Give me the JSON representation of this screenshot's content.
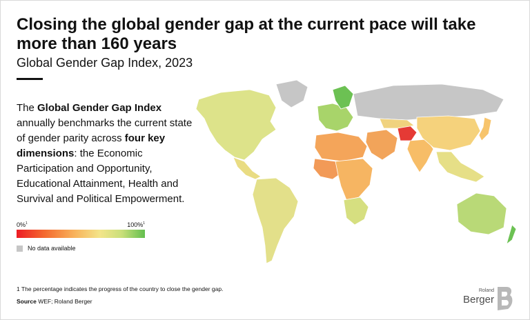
{
  "title": "Closing the global gender gap at the current pace will take more than 160 years",
  "subtitle": "Global Gender Gap Index, 2023",
  "description": {
    "part1": "The ",
    "bold1": "Global Gender Gap Index",
    "part2": " annually benchmarks the current state of gender parity across ",
    "bold2": "four key dimensions",
    "part3": ": the Economic Participation and Opportunity, Educational Attainment, Health and Survival and Political Empowerment."
  },
  "legend": {
    "min_label": "0%",
    "max_label": "100%",
    "footnote_marker": "1",
    "no_data_label": "No data available",
    "scale_colors": [
      "#ed1c24",
      "#f46a2f",
      "#f8b25b",
      "#f3e58a",
      "#c9df7a",
      "#63bf4f"
    ],
    "no_data_color": "#c6c6c6"
  },
  "footnote": "1 The percentage indicates the progress of the country to close the gender gap.",
  "source": {
    "label": "Source",
    "text": " WEF; Roland Berger"
  },
  "logo": {
    "top": "Roland",
    "main": "Berger"
  },
  "map_regions": [
    {
      "name": "north-america",
      "color": "#dde38a"
    },
    {
      "name": "greenland",
      "color": "#c6c6c6"
    },
    {
      "name": "central-america",
      "color": "#e9dc83"
    },
    {
      "name": "south-america",
      "color": "#e3e08a"
    },
    {
      "name": "europe",
      "color": "#a8d46a"
    },
    {
      "name": "scandinavia",
      "color": "#6cc153"
    },
    {
      "name": "russia",
      "color": "#c6c6c6"
    },
    {
      "name": "africa-north",
      "color": "#f4a55a"
    },
    {
      "name": "africa-west",
      "color": "#f29a57"
    },
    {
      "name": "africa-central",
      "color": "#f6b562"
    },
    {
      "name": "africa-south",
      "color": "#d6df80"
    },
    {
      "name": "middle-east",
      "color": "#f2a45a"
    },
    {
      "name": "afghanistan",
      "color": "#e53a35"
    },
    {
      "name": "central-asia",
      "color": "#f0d27e"
    },
    {
      "name": "india",
      "color": "#f7bd67"
    },
    {
      "name": "china",
      "color": "#f5d27c"
    },
    {
      "name": "southeast-asia",
      "color": "#e6df87"
    },
    {
      "name": "japan",
      "color": "#f7c46c"
    },
    {
      "name": "australia",
      "color": "#b9d977"
    },
    {
      "name": "new-zealand",
      "color": "#6cc153"
    }
  ]
}
